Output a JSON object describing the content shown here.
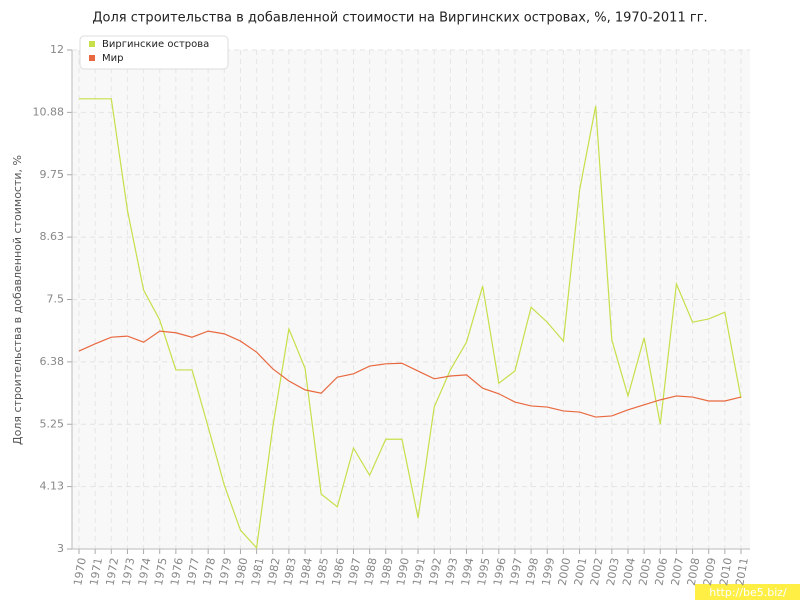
{
  "chart_data": {
    "type": "line",
    "title": "Доля строительства в добавленной стоимости на Виргинских островах, %, 1970-2011 гг.",
    "y_label": "Доля строительства в добавленной стоимости, %",
    "watermark": "http://be5.biz/",
    "categories": [
      "1970",
      "1971",
      "1972",
      "1973",
      "1974",
      "1975",
      "1976",
      "1977",
      "1978",
      "1979",
      "1980",
      "1981",
      "1982",
      "1983",
      "1984",
      "1985",
      "1986",
      "1987",
      "1988",
      "1989",
      "1990",
      "1991",
      "1992",
      "1993",
      "1994",
      "1995",
      "1996",
      "1997",
      "1998",
      "1999",
      "2000",
      "2001",
      "2002",
      "2003",
      "2004",
      "2005",
      "2006",
      "2007",
      "2008",
      "2009",
      "2010",
      "2011"
    ],
    "series": [
      {
        "name": "Виргинские острова",
        "color": "#c5e04a",
        "values": [
          11.12,
          11.12,
          11.12,
          9.11,
          7.67,
          7.13,
          6.23,
          6.23,
          5.2,
          4.15,
          3.34,
          3.02,
          5.2,
          6.97,
          6.26,
          3.99,
          3.76,
          4.82,
          4.33,
          4.98,
          4.98,
          3.56,
          5.56,
          6.23,
          6.73,
          7.74,
          5.99,
          6.21,
          7.36,
          7.09,
          6.75,
          9.47,
          10.99,
          6.77,
          5.76,
          6.81,
          5.25,
          7.78,
          7.09,
          7.15,
          7.27,
          5.72
        ]
      },
      {
        "name": "Мир",
        "color": "#e8693f",
        "values": [
          6.57,
          6.7,
          6.82,
          6.84,
          6.73,
          6.93,
          6.9,
          6.82,
          6.93,
          6.88,
          6.75,
          6.55,
          6.25,
          6.03,
          5.87,
          5.81,
          6.1,
          6.16,
          6.3,
          6.34,
          6.35,
          6.21,
          6.07,
          6.12,
          6.14,
          5.9,
          5.8,
          5.65,
          5.58,
          5.56,
          5.49,
          5.47,
          5.38,
          5.4,
          5.51,
          5.6,
          5.69,
          5.76,
          5.74,
          5.67,
          5.67,
          5.74
        ]
      }
    ],
    "ylim": [
      3,
      12
    ],
    "yticks": [
      3,
      {
        "value": 4.125,
        "label": "4.13"
      },
      5.25,
      {
        "value": 6.375,
        "label": "6.38"
      },
      7.5,
      {
        "value": 8.625,
        "label": "8.63"
      },
      9.75,
      {
        "value": 10.875,
        "label": "10.88"
      },
      12
    ],
    "grid": true
  }
}
